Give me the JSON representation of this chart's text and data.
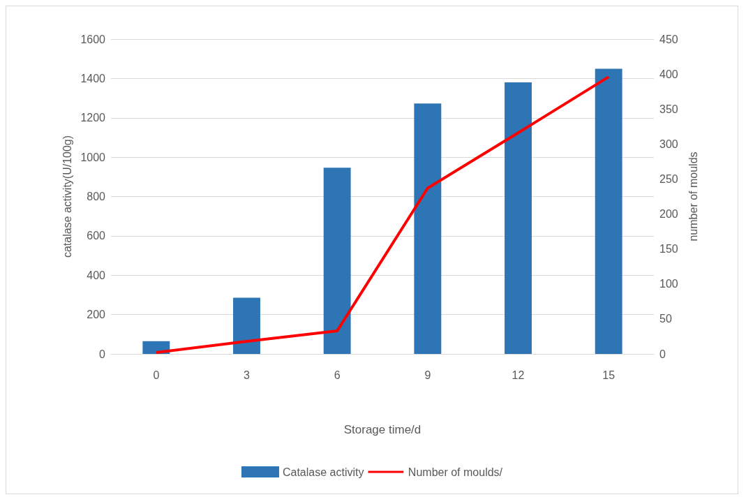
{
  "chart_data": {
    "type": "bar",
    "categories": [
      "0",
      "3",
      "6",
      "9",
      "12",
      "15"
    ],
    "xlabel": "Storage time/d",
    "ylabel": "catalase activity(U/100g)",
    "y2label": "number of moulds",
    "ylim": [
      0,
      1600
    ],
    "yticks": [
      0,
      200,
      400,
      600,
      800,
      1000,
      1200,
      1400,
      1600
    ],
    "y2lim": [
      0,
      450
    ],
    "y2ticks": [
      0,
      50,
      100,
      150,
      200,
      250,
      300,
      350,
      400,
      450
    ],
    "grid": "y",
    "legend": "bottom",
    "series": [
      {
        "name": "Catalase activity",
        "color": "#2e75b6",
        "values": [
          65,
          286,
          946,
          1273,
          1380,
          1449
        ]
      },
      {
        "name": "Number of moulds/",
        "type": "line",
        "axis": "y2",
        "color": "#ff0000",
        "marker": "none",
        "values": [
          2,
          18,
          33,
          237,
          316,
          396
        ]
      }
    ]
  }
}
